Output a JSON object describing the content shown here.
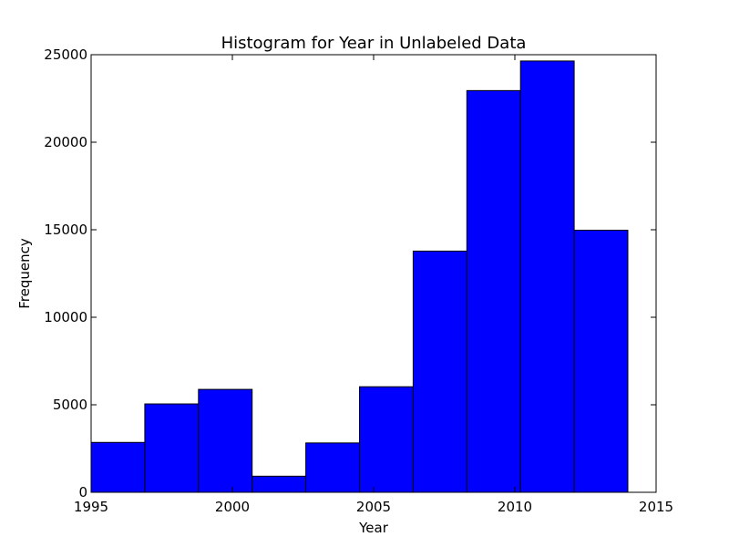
{
  "chart_data": {
    "type": "bar",
    "title": "Histogram for Year in Unlabeled Data",
    "xlabel": "Year",
    "ylabel": "Frequency",
    "xlim": [
      1995,
      2015
    ],
    "ylim": [
      0,
      25000
    ],
    "xticks": [
      "1995",
      "2000",
      "2005",
      "2010",
      "2015"
    ],
    "yticks": [
      "0",
      "5000",
      "10000",
      "15000",
      "20000",
      "25000"
    ],
    "bins": [
      {
        "x0": 1995.0,
        "x1": 1996.9,
        "count": 2850
      },
      {
        "x0": 1996.9,
        "x1": 1998.8,
        "count": 5050
      },
      {
        "x0": 1998.8,
        "x1": 2000.7,
        "count": 5880
      },
      {
        "x0": 2000.7,
        "x1": 2002.6,
        "count": 920
      },
      {
        "x0": 2002.6,
        "x1": 2004.5,
        "count": 2820
      },
      {
        "x0": 2004.5,
        "x1": 2006.4,
        "count": 6030
      },
      {
        "x0": 2006.4,
        "x1": 2008.3,
        "count": 13780
      },
      {
        "x0": 2008.3,
        "x1": 2010.2,
        "count": 22950
      },
      {
        "x0": 2010.2,
        "x1": 2012.1,
        "count": 24640
      },
      {
        "x0": 2012.1,
        "x1": 2014.0,
        "count": 14970
      }
    ],
    "bar_color": "#0000ff",
    "edge_color": "#000000",
    "grid": false
  }
}
